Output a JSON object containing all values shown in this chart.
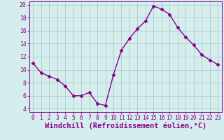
{
  "x": [
    0,
    1,
    2,
    3,
    4,
    5,
    6,
    7,
    8,
    9,
    10,
    11,
    12,
    13,
    14,
    15,
    16,
    17,
    18,
    19,
    20,
    21,
    22,
    23
  ],
  "y": [
    11,
    9.5,
    9,
    8.5,
    7.5,
    6,
    6,
    6.5,
    4.8,
    4.5,
    9.2,
    13,
    14.8,
    16.3,
    17.5,
    19.8,
    19.3,
    18.5,
    16.5,
    15,
    13.8,
    12.3,
    11.5,
    10.8
  ],
  "line_color": "#880088",
  "marker": "D",
  "markersize": 2.5,
  "linewidth": 1.0,
  "bg_color": "#d5eeed",
  "grid_color": "#aacccc",
  "xlabel": "Windchill (Refroidissement éolien,°C)",
  "ylabel": "",
  "title": "",
  "xlim": [
    -0.5,
    23.5
  ],
  "ylim": [
    3.5,
    20.5
  ],
  "yticks": [
    4,
    6,
    8,
    10,
    12,
    14,
    16,
    18,
    20
  ],
  "xticks": [
    0,
    1,
    2,
    3,
    4,
    5,
    6,
    7,
    8,
    9,
    10,
    11,
    12,
    13,
    14,
    15,
    16,
    17,
    18,
    19,
    20,
    21,
    22,
    23
  ],
  "tick_fontsize": 5.8,
  "xlabel_fontsize": 7.5,
  "tick_color": "#880088",
  "label_color": "#880088",
  "spine_color": "#880088"
}
